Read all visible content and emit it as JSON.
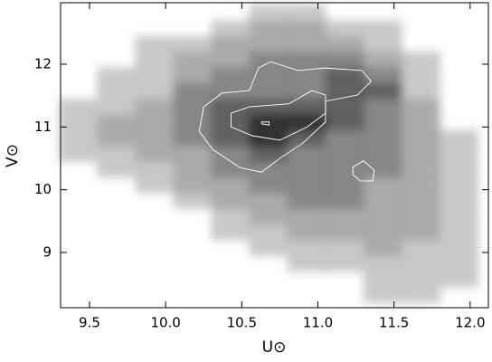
{
  "chart_data": {
    "type": "density",
    "x_label": "U⊙",
    "y_label": "V⊙",
    "xlim": [
      9.31,
      12.12
    ],
    "ylim": [
      8.12,
      12.98
    ],
    "xticks": [
      9.5,
      {
        "value": 10,
        "label": "10.0"
      },
      10.5,
      {
        "value": 11,
        "label": "11.0"
      },
      11.5,
      {
        "value": 12,
        "label": "12.0"
      }
    ],
    "yticks": [
      9,
      10,
      11,
      12
    ],
    "xbins": [
      9.3,
      9.55,
      9.8,
      10.05,
      10.3,
      10.55,
      10.8,
      11.05,
      11.3,
      11.55,
      11.8,
      12.05
    ],
    "ybins": [
      8.2,
      8.45,
      8.7,
      8.95,
      9.2,
      9.45,
      9.7,
      9.95,
      10.2,
      10.45,
      10.7,
      10.95,
      11.2,
      11.45,
      11.7,
      11.95,
      12.2,
      12.45,
      12.7,
      12.95
    ],
    "density": [
      [
        0,
        0,
        0,
        0,
        0,
        0,
        0,
        0,
        1,
        1,
        0
      ],
      [
        0,
        0,
        0,
        0,
        0,
        0,
        0,
        0,
        1,
        1,
        1
      ],
      [
        0,
        0,
        0,
        0,
        0,
        0,
        1,
        1,
        1,
        1,
        1
      ],
      [
        0,
        0,
        0,
        0,
        0,
        1,
        1,
        1,
        2,
        1,
        1
      ],
      [
        0,
        0,
        0,
        0,
        1,
        1,
        2,
        2,
        2,
        2,
        1
      ],
      [
        0,
        0,
        0,
        0,
        1,
        2,
        2,
        2,
        2,
        2,
        1
      ],
      [
        0,
        0,
        0,
        1,
        2,
        2,
        3,
        3,
        2,
        2,
        1
      ],
      [
        0,
        0,
        1,
        2,
        2,
        3,
        3,
        3,
        2,
        2,
        1
      ],
      [
        0,
        1,
        1,
        2,
        3,
        3,
        3,
        3,
        3,
        2,
        1
      ],
      [
        1,
        1,
        2,
        2,
        3,
        4,
        3,
        3,
        3,
        2,
        1
      ],
      [
        1,
        2,
        2,
        3,
        4,
        5,
        4,
        3,
        3,
        2,
        1
      ],
      [
        1,
        2,
        2,
        3,
        4,
        5,
        5,
        4,
        3,
        2,
        0
      ],
      [
        1,
        1,
        2,
        3,
        4,
        4,
        4,
        4,
        3,
        2,
        0
      ],
      [
        0,
        1,
        1,
        3,
        3,
        3,
        3,
        4,
        4,
        1,
        0
      ],
      [
        0,
        1,
        1,
        2,
        3,
        3,
        3,
        4,
        3,
        1,
        0
      ],
      [
        0,
        0,
        1,
        2,
        2,
        3,
        3,
        3,
        2,
        1,
        0
      ],
      [
        0,
        0,
        1,
        1,
        2,
        2,
        2,
        2,
        1,
        0,
        0
      ],
      [
        0,
        0,
        0,
        0,
        1,
        2,
        2,
        1,
        1,
        0,
        0
      ],
      [
        0,
        0,
        0,
        0,
        0,
        1,
        1,
        0,
        0,
        0,
        0
      ]
    ],
    "contour_color": "#ffffff",
    "contours": [
      {
        "x": [
          10.25,
          10.37,
          10.55,
          10.61,
          10.69,
          10.87,
          11.05,
          11.29,
          11.35,
          11.26,
          11.05,
          11.05,
          10.9,
          10.75,
          10.63,
          10.49,
          10.31,
          10.22
        ],
        "y": [
          11.32,
          11.54,
          11.58,
          11.94,
          12.04,
          11.9,
          11.94,
          11.9,
          11.73,
          11.51,
          11.41,
          11.08,
          10.74,
          10.5,
          10.28,
          10.35,
          10.64,
          10.93
        ]
      },
      {
        "x": [
          10.43,
          10.55,
          10.81,
          10.96,
          11.05,
          11.05,
          10.93,
          10.75,
          10.57,
          10.43
        ],
        "y": [
          11.22,
          11.32,
          11.37,
          11.58,
          11.51,
          11.22,
          11.0,
          10.79,
          10.86,
          11.0
        ]
      },
      {
        "x": [
          11.23,
          11.3,
          11.37,
          11.36,
          11.28,
          11.23
        ],
        "y": [
          10.36,
          10.46,
          10.31,
          10.14,
          10.14,
          10.24
        ]
      },
      {
        "x": [
          10.63,
          10.68,
          10.68,
          10.63
        ],
        "y": [
          11.08,
          11.08,
          11.03,
          11.05
        ]
      }
    ]
  }
}
